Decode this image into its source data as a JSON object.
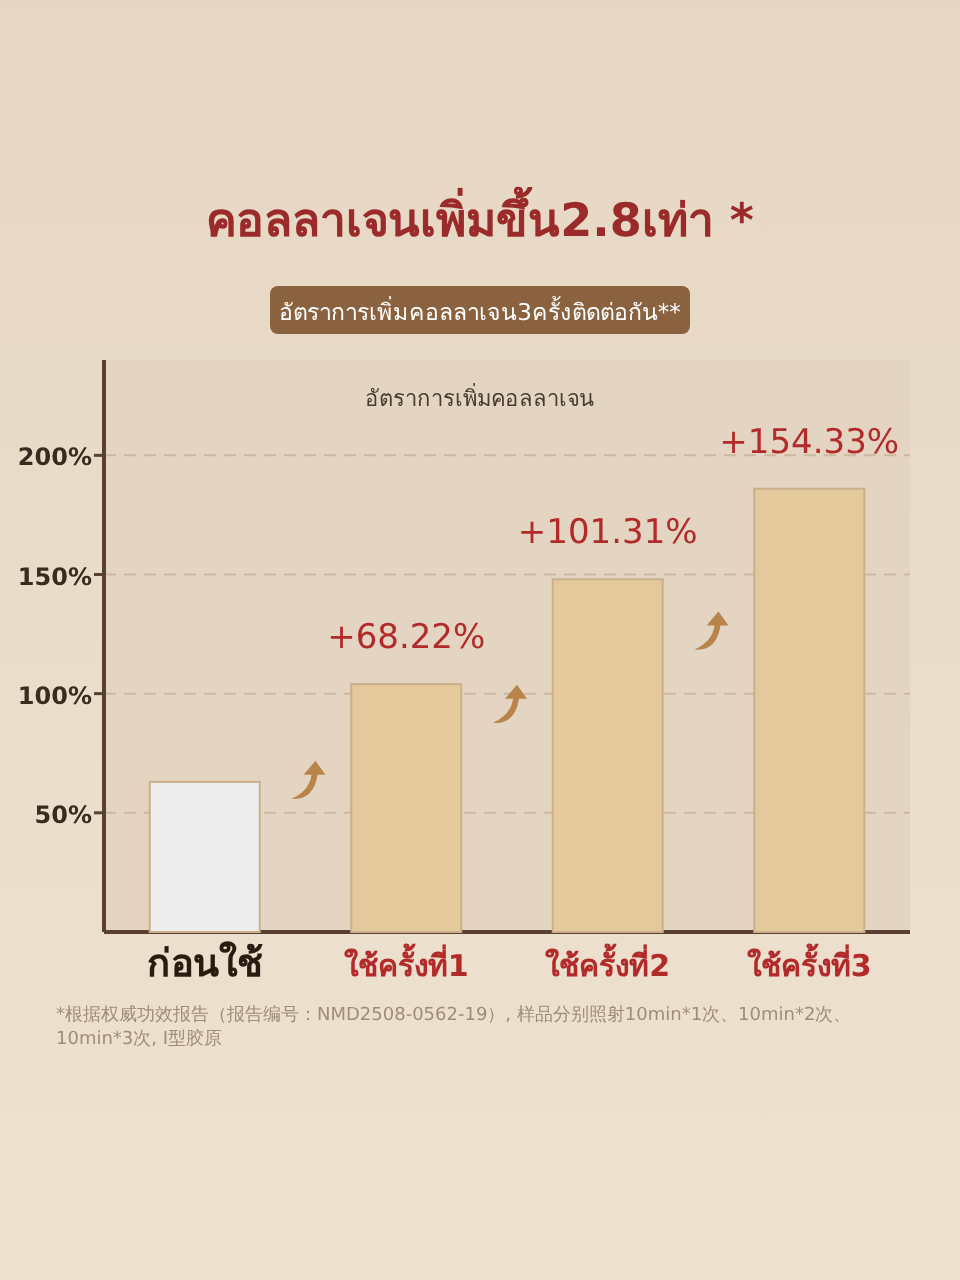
{
  "chart_data": {
    "type": "bar",
    "title": "คอลลาเจนเพิ่มขึ้น2.8เท่า *",
    "subtitle": "อัตราการเพิ่มคอลลาเจน3ครั้งติดต่อกัน**",
    "annotations": [
      "อัตราการเพิ่มคอลลาเจน",
      "*根据权威功效报告（报告编号：NMD2508-0562-19）, 样品分别照射10min*1次、10min*2次、10min*3次, I型胶原",
      {
        "text": "+68.22%",
        "x": "ใช้ครั้งที่1",
        "y": 104
      },
      {
        "text": "+101.31%",
        "x": "ใช้ครั้งที่2",
        "y": 148
      },
      {
        "text": "+154.33%",
        "x": "ใช้ครั้งที่3",
        "y": 186
      }
    ],
    "categories": [
      "ก่อนใช้",
      "ใช้ครั้งที่1",
      "ใช้ครั้งที่2",
      "ใช้ครั้งที่3"
    ],
    "values": [
      63,
      104,
      148,
      186
    ],
    "colors": [
      "#ededed",
      "#e3c99c",
      "#e3c99c",
      "#e3c99c"
    ],
    "ylim": [
      0,
      240
    ],
    "yticks": [
      {
        "value": 50,
        "label": "50%"
      },
      {
        "value": 100,
        "label": "100%"
      },
      {
        "value": 150,
        "label": "150%"
      },
      {
        "value": 200,
        "label": "200%"
      }
    ],
    "grid": "y"
  }
}
